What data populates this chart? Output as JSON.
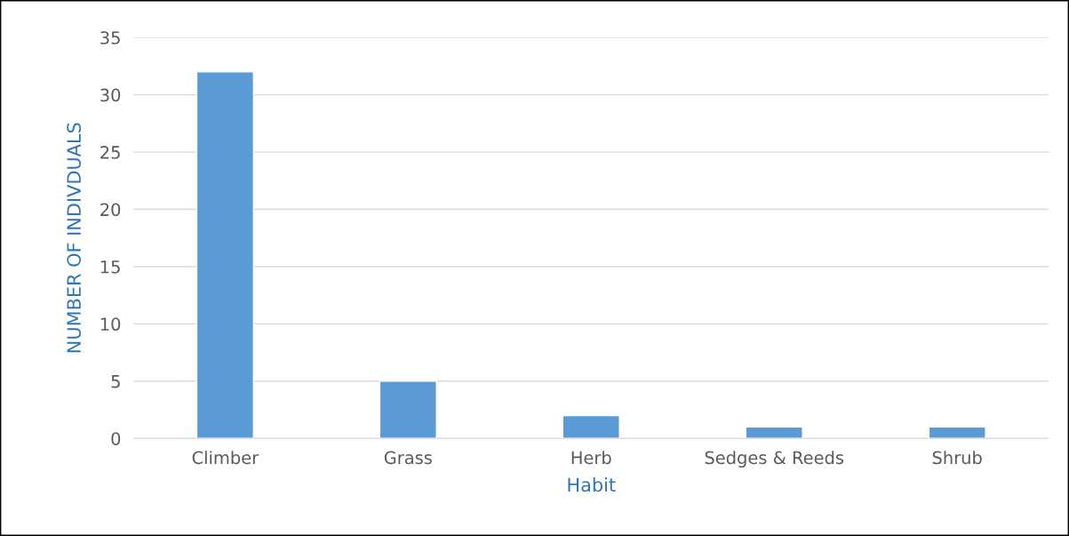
{
  "chart_data": {
    "type": "bar",
    "xlabel": "Habit",
    "ylabel": "NUMBER OF INDIVDUALS",
    "categories": [
      "Climber",
      "Grass",
      "Herb",
      "Sedges & Reeds",
      "Shrub"
    ],
    "values": [
      32,
      5,
      2,
      1,
      1
    ],
    "color": "#5b9bd5",
    "ylim": [
      0,
      35
    ],
    "yticks": [
      0,
      5,
      10,
      15,
      20,
      25,
      30,
      35
    ],
    "grid": "y",
    "legend": false
  }
}
